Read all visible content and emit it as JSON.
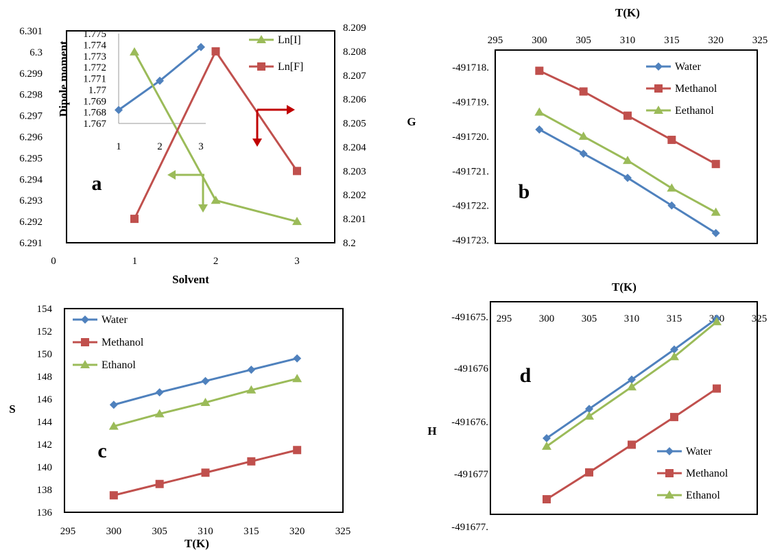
{
  "colors": {
    "blue": "#4F81BD",
    "red": "#C0504D",
    "green": "#9BBB59",
    "dark_red": "#C00000"
  },
  "chart_data": [
    {
      "panel": "a",
      "type": "line",
      "xlabel": "Solvent",
      "xlim": [
        0,
        3
      ],
      "x_ticks": [
        "0",
        "1",
        "2",
        "3"
      ],
      "y_left_lim": [
        6.291,
        6.301
      ],
      "y_left_ticks": [
        "6.291",
        "6.292",
        "6.293",
        "6.294",
        "6.295",
        "6.296",
        "6.297",
        "6.298",
        "6.299",
        "6.3",
        "6.301"
      ],
      "y_right_lim": [
        8.2,
        8.209
      ],
      "y_right_ticks": [
        "8.2",
        "8.201",
        "8.202",
        "8.203",
        "8.204",
        "8.205",
        "8.206",
        "8.207",
        "8.208",
        "8.209"
      ],
      "series": [
        {
          "name": "Ln[I]",
          "axis": "left",
          "x": [
            1,
            2,
            3
          ],
          "values": [
            6.3,
            6.293,
            6.292
          ]
        },
        {
          "name": "Ln[F]",
          "axis": "right",
          "x": [
            1,
            2,
            3
          ],
          "values": [
            8.201,
            8.208,
            8.203
          ]
        }
      ],
      "inset": {
        "ylabel": "Dipole moment",
        "x_ticks": [
          "1",
          "2",
          "3"
        ],
        "ylim": [
          1.767,
          1.775
        ],
        "y_ticks": [
          "1.767",
          "1.768",
          "1.769",
          "1.77",
          "1.771",
          "1.772",
          "1.773",
          "1.774",
          "1.775"
        ],
        "x": [
          1,
          2,
          3
        ],
        "values": [
          1.7682,
          1.7708,
          1.7738
        ]
      },
      "grid": false,
      "legend": "top-right"
    },
    {
      "panel": "b",
      "type": "line",
      "xlabel": "T(K)",
      "ylabel": "G",
      "xlim": [
        295,
        325
      ],
      "x_ticks": [
        "295",
        "300",
        "305",
        "310",
        "315",
        "320",
        "325"
      ],
      "ylim": [
        -491723.1,
        -491717.5
      ],
      "y_ticks": [
        "-491718.",
        "-491719.",
        "-491720.",
        "-491721.",
        "-491722.",
        "-491723."
      ],
      "x": [
        300,
        305,
        310,
        315,
        320
      ],
      "series": [
        {
          "name": "Water",
          "values": [
            -491719.8,
            -491720.5,
            -491721.2,
            -491722.0,
            -491722.8
          ]
        },
        {
          "name": "Methanol",
          "values": [
            -491718.1,
            -491718.7,
            -491719.4,
            -491720.1,
            -491720.8
          ]
        },
        {
          "name": "Eethanol",
          "values": [
            -491719.3,
            -491720.0,
            -491720.7,
            -491721.5,
            -491722.2
          ]
        }
      ],
      "grid": false,
      "legend": "top-right"
    },
    {
      "panel": "c",
      "type": "line",
      "xlabel": "T(K)",
      "ylabel": "S",
      "xlim": [
        295,
        325
      ],
      "x_ticks": [
        "295",
        "300",
        "305",
        "310",
        "315",
        "320",
        "325"
      ],
      "ylim": [
        136,
        154
      ],
      "y_ticks": [
        "136",
        "138",
        "140",
        "142",
        "144",
        "146",
        "148",
        "150",
        "152",
        "154"
      ],
      "x": [
        300,
        305,
        310,
        315,
        320
      ],
      "series": [
        {
          "name": "Water",
          "values": [
            145.5,
            146.6,
            147.6,
            148.6,
            149.6
          ]
        },
        {
          "name": "Methanol",
          "values": [
            137.5,
            138.5,
            139.5,
            140.5,
            141.5
          ]
        },
        {
          "name": "Ethanol",
          "values": [
            143.6,
            144.7,
            145.7,
            146.8,
            147.8
          ]
        }
      ],
      "grid": false,
      "legend": "top-left"
    },
    {
      "panel": "d",
      "type": "line",
      "xlabel": "T(K)",
      "ylabel": "H",
      "xlim": [
        295,
        325
      ],
      "x_ticks": [
        "295",
        "300",
        "305",
        "310",
        "315",
        "320",
        "325"
      ],
      "ylim": [
        -491677.7,
        -491675.4
      ],
      "y_ticks": [
        "-491675.",
        "-491676",
        "-491676.",
        "-491677",
        "-491677."
      ],
      "x": [
        300,
        305,
        310,
        315,
        320
      ],
      "series": [
        {
          "name": "Water",
          "values": [
            -491676.95,
            -491676.59,
            -491676.23,
            -491675.86,
            -491675.48
          ]
        },
        {
          "name": "Methanol",
          "values": [
            -491677.7,
            -491677.37,
            -491677.03,
            -491676.69,
            -491676.34
          ]
        },
        {
          "name": "Ethanol",
          "values": [
            -491677.05,
            -491676.68,
            -491676.32,
            -491675.95,
            -491675.52
          ]
        }
      ],
      "grid": false,
      "legend": "bottom-right"
    }
  ]
}
